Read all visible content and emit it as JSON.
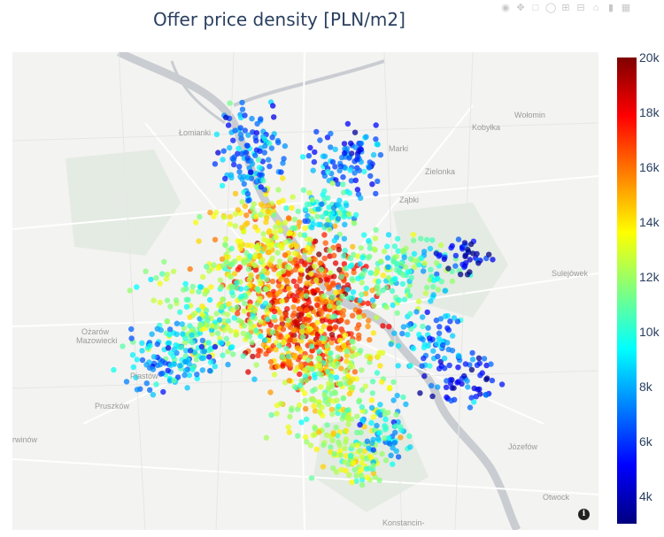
{
  "title": "Offer price density [PLN/m2]",
  "modebar": [
    "camera-icon",
    "pan-icon",
    "box-select-icon",
    "lasso-icon",
    "zoom-in-icon",
    "zoom-out-icon",
    "home-icon",
    "hover-icon",
    "plotly-logo-icon"
  ],
  "places": {
    "lomianki": "Łomianki",
    "kobylka": "Kobyłka",
    "wolomin": "Wołomin",
    "marki": "Marki",
    "zielonka": "Zielonka",
    "zabki": "Ząbki",
    "sulejowek": "Sulejówek",
    "ozarow1": "Ożarów",
    "ozarow2": "Mazowiecki",
    "piastow": "Piastów",
    "pruszkow": "Pruszków",
    "brwinow": "rwinów",
    "jozefow": "Józefów",
    "otwock": "Otwock",
    "konstancin": "Konstancin-"
  },
  "colorbar": {
    "colorscale": "Jet",
    "min": 3000,
    "max": 20000,
    "ticks": [
      "20k",
      "18k",
      "16k",
      "14k",
      "12k",
      "10k",
      "8k",
      "6k",
      "4k"
    ]
  },
  "colors": {
    "background": "#f3f3f1",
    "water": "#c9ccd1",
    "park": "#e4ebe3",
    "title": "#2a3f5f"
  }
}
